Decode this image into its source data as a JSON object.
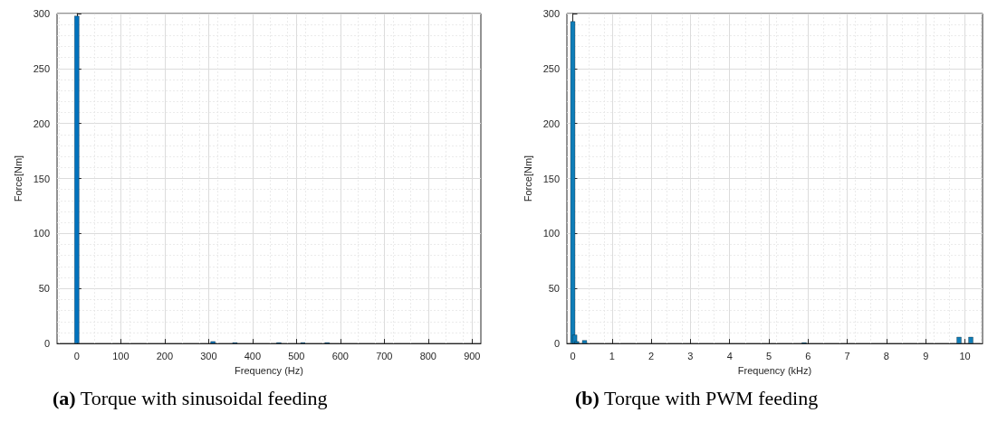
{
  "chart_data": [
    {
      "type": "bar",
      "xlabel": "Frequency (Hz)",
      "ylabel": "Force[Nm]",
      "annotations": [
        "(a) Torque with sinusoidal feeding"
      ],
      "x": [
        0,
        310,
        360,
        460,
        515,
        570
      ],
      "series": [
        {
          "color": "#0072bd",
          "values": [
            298,
            2,
            1,
            1,
            1,
            1
          ]
        }
      ],
      "xlim": [
        -45,
        920
      ],
      "xticks": [
        0,
        100,
        200,
        300,
        400,
        500,
        600,
        700,
        800,
        900
      ],
      "ylim": [
        0,
        300
      ],
      "yticks": [
        0,
        50,
        100,
        150,
        200,
        250,
        300
      ],
      "grid": true
    },
    {
      "type": "bar",
      "xlabel": "Frequency (kHz)",
      "ylabel": "Force[Nm]",
      "annotations": [
        "(b) Torque with PWM feeding"
      ],
      "x": [
        0,
        0.05,
        0.1,
        0.3,
        5.9,
        9.85,
        10.15
      ],
      "series": [
        {
          "color": "#0e7db8",
          "values": [
            293,
            8,
            2,
            3,
            1,
            6,
            6
          ]
        }
      ],
      "xlim": [
        -0.15,
        10.45
      ],
      "xticks": [
        0,
        1,
        2,
        3,
        4,
        5,
        6,
        7,
        8,
        9,
        10
      ],
      "ylim": [
        0,
        300
      ],
      "yticks": [
        0,
        50,
        100,
        150,
        200,
        250,
        300
      ],
      "grid": true
    }
  ]
}
